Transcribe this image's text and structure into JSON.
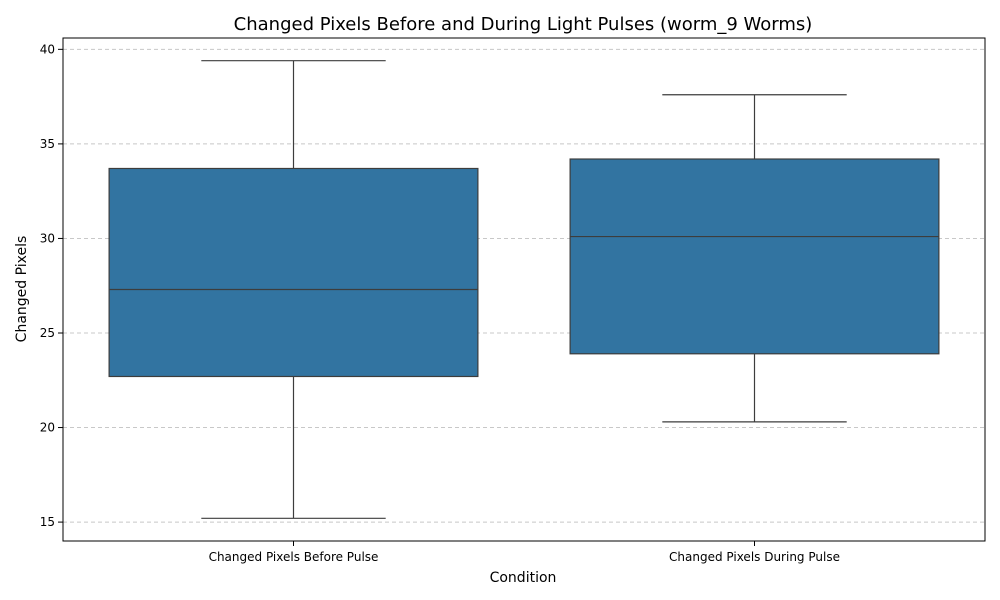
{
  "chart_data": {
    "type": "box",
    "title": "Changed Pixels Before and During Light Pulses (worm_9 Worms)",
    "xlabel": "Condition",
    "ylabel": "Changed Pixels",
    "ylim": [
      14,
      40.6
    ],
    "yticks": [
      15,
      20,
      25,
      30,
      35,
      40
    ],
    "grid": "y-dashed",
    "box_color": "#3274a1",
    "line_color": "#3d3d3d",
    "grid_color": "#c8c8c8",
    "categories": [
      "Changed Pixels Before Pulse",
      "Changed Pixels During Pulse"
    ],
    "boxes": [
      {
        "category": "Changed Pixels Before Pulse",
        "whisker_low": 15.2,
        "q1": 22.7,
        "median": 27.3,
        "q3": 33.7,
        "whisker_high": 39.4
      },
      {
        "category": "Changed Pixels During Pulse",
        "whisker_low": 20.3,
        "q1": 23.9,
        "median": 30.1,
        "q3": 34.2,
        "whisker_high": 37.6
      }
    ]
  }
}
